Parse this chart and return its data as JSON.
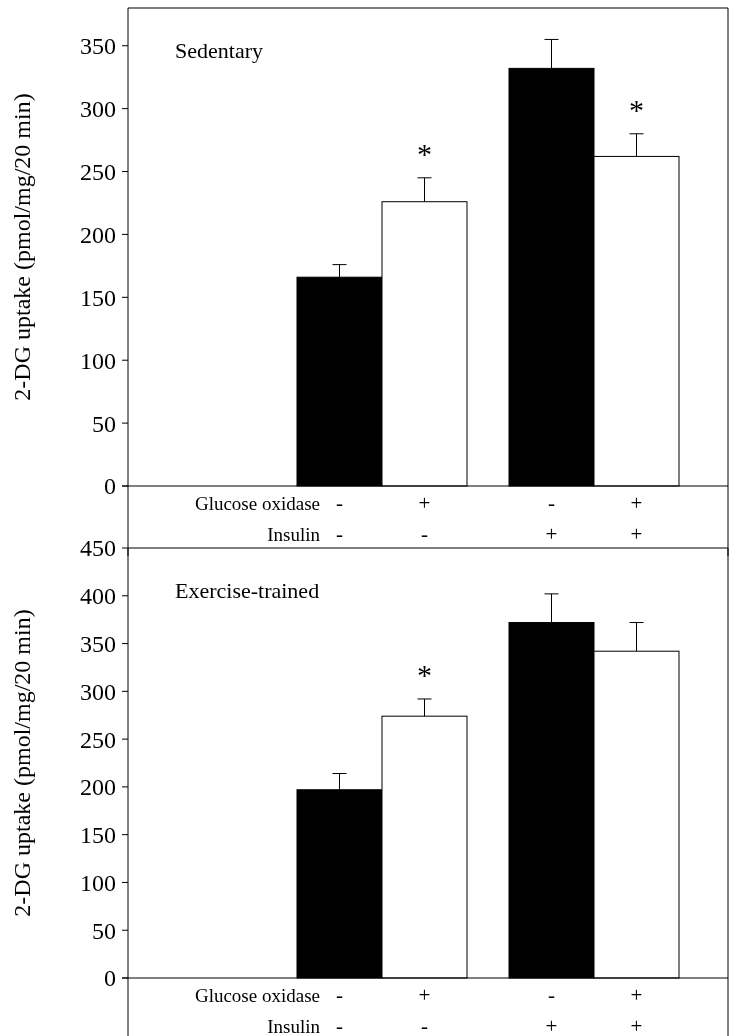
{
  "chart_data": [
    {
      "type": "bar",
      "title": "Sedentary",
      "ylabel": "2-DG uptake (pmol/mg/20 min)",
      "categories": [
        "-\n-",
        "+\n-",
        "-\n+",
        "+\n+"
      ],
      "values": [
        166,
        226,
        332,
        262
      ],
      "colors": [
        "#000000",
        "#ffffff",
        "#000000",
        "#ffffff"
      ],
      "errors": [
        [
          166,
          176
        ],
        [
          226,
          245
        ],
        [
          332,
          355
        ],
        [
          262,
          280
        ]
      ],
      "ylim": [
        0,
        380
      ],
      "yticks": [
        0,
        50,
        100,
        150,
        200,
        250,
        300,
        350
      ],
      "value_labels": [
        null,
        "*",
        null,
        "*"
      ],
      "annotations": [
        "Glucose oxidase",
        "Insulin"
      ]
    },
    {
      "type": "bar",
      "title": "Exercise-trained",
      "ylabel": "2-DG uptake (pmol/mg/20 min)",
      "categories": [
        "-\n-",
        "+\n-",
        "-\n+",
        "+\n+"
      ],
      "values": [
        197,
        274,
        372,
        342
      ],
      "colors": [
        "#000000",
        "#ffffff",
        "#000000",
        "#ffffff"
      ],
      "errors": [
        [
          197,
          214
        ],
        [
          274,
          292
        ],
        [
          372,
          402
        ],
        [
          342,
          372
        ]
      ],
      "ylim": [
        0,
        450
      ],
      "yticks": [
        0,
        50,
        100,
        150,
        200,
        250,
        300,
        350,
        400,
        450
      ],
      "value_labels": [
        null,
        "*",
        null,
        null
      ],
      "annotations": [
        "Glucose oxidase",
        "Insulin"
      ]
    }
  ]
}
